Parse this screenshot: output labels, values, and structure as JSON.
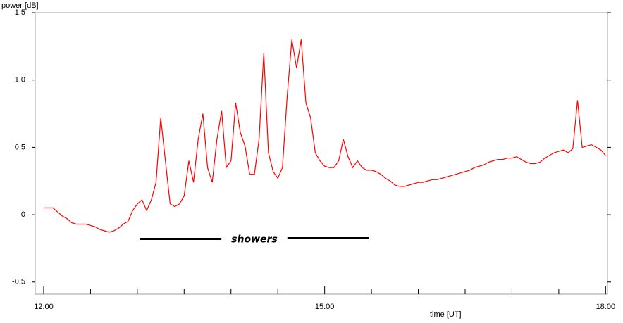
{
  "chart_data": {
    "type": "line",
    "y_label": "power [dB]",
    "x_label": "time [UT]",
    "color": "#ff0000",
    "xlim": [
      11.91,
      18.02
    ],
    "ylim": [
      -0.59,
      1.5
    ],
    "xticks": [
      {
        "value": 12,
        "label": "12:00"
      },
      {
        "value": 15,
        "label": "15:00"
      },
      {
        "value": 18,
        "label": "18:00"
      }
    ],
    "xminor_ticks": [
      12.5,
      13,
      13.5,
      14,
      14.5,
      15.5,
      16,
      16.5,
      17,
      17.5
    ],
    "yticks": [
      -0.5,
      0,
      0.5,
      {
        "value": 1,
        "label": "1.0"
      },
      {
        "value": 1.5,
        "label": "1.5"
      }
    ],
    "annotation": {
      "text": "showers",
      "x_start": 13.03,
      "x_end": 15.47,
      "y": -0.18
    },
    "x": [
      12.0,
      12.05,
      12.1,
      12.15,
      12.2,
      12.25,
      12.3,
      12.35,
      12.4,
      12.45,
      12.5,
      12.55,
      12.6,
      12.65,
      12.7,
      12.75,
      12.8,
      12.85,
      12.9,
      12.95,
      13.0,
      13.05,
      13.1,
      13.15,
      13.2,
      13.25,
      13.3,
      13.35,
      13.4,
      13.45,
      13.5,
      13.55,
      13.6,
      13.65,
      13.7,
      13.75,
      13.8,
      13.85,
      13.9,
      13.95,
      14.0,
      14.05,
      14.1,
      14.15,
      14.2,
      14.25,
      14.3,
      14.35,
      14.4,
      14.45,
      14.5,
      14.55,
      14.6,
      14.65,
      14.7,
      14.75,
      14.8,
      14.85,
      14.9,
      14.95,
      15.0,
      15.05,
      15.1,
      15.15,
      15.2,
      15.25,
      15.3,
      15.35,
      15.4,
      15.45,
      15.5,
      15.55,
      15.6,
      15.65,
      15.7,
      15.75,
      15.8,
      15.85,
      15.9,
      15.95,
      16.0,
      16.05,
      16.1,
      16.15,
      16.2,
      16.25,
      16.3,
      16.35,
      16.4,
      16.45,
      16.5,
      16.55,
      16.6,
      16.65,
      16.7,
      16.75,
      16.8,
      16.85,
      16.9,
      16.95,
      17.0,
      17.05,
      17.1,
      17.15,
      17.2,
      17.25,
      17.3,
      17.35,
      17.4,
      17.45,
      17.5,
      17.55,
      17.6,
      17.65,
      17.7,
      17.75,
      17.8,
      17.85,
      17.9,
      17.95,
      18.0
    ],
    "values": [
      0.05,
      0.05,
      0.05,
      0.02,
      -0.01,
      -0.03,
      -0.06,
      -0.07,
      -0.07,
      -0.07,
      -0.08,
      -0.09,
      -0.11,
      -0.12,
      -0.13,
      -0.12,
      -0.1,
      -0.07,
      -0.05,
      0.03,
      0.08,
      0.11,
      0.03,
      0.11,
      0.24,
      0.72,
      0.4,
      0.08,
      0.06,
      0.08,
      0.14,
      0.4,
      0.24,
      0.56,
      0.75,
      0.35,
      0.24,
      0.56,
      0.77,
      0.35,
      0.4,
      0.83,
      0.61,
      0.51,
      0.3,
      0.3,
      0.56,
      1.2,
      0.46,
      0.32,
      0.27,
      0.35,
      0.88,
      1.3,
      1.09,
      1.3,
      0.83,
      0.72,
      0.46,
      0.4,
      0.36,
      0.35,
      0.35,
      0.4,
      0.56,
      0.43,
      0.35,
      0.4,
      0.35,
      0.33,
      0.33,
      0.32,
      0.3,
      0.27,
      0.25,
      0.22,
      0.21,
      0.21,
      0.22,
      0.23,
      0.24,
      0.24,
      0.25,
      0.26,
      0.26,
      0.27,
      0.28,
      0.29,
      0.3,
      0.31,
      0.32,
      0.33,
      0.35,
      0.36,
      0.37,
      0.39,
      0.4,
      0.41,
      0.41,
      0.42,
      0.42,
      0.43,
      0.41,
      0.39,
      0.38,
      0.38,
      0.39,
      0.42,
      0.44,
      0.46,
      0.47,
      0.48,
      0.46,
      0.49,
      0.85,
      0.5,
      0.51,
      0.52,
      0.5,
      0.48,
      0.44
    ]
  }
}
